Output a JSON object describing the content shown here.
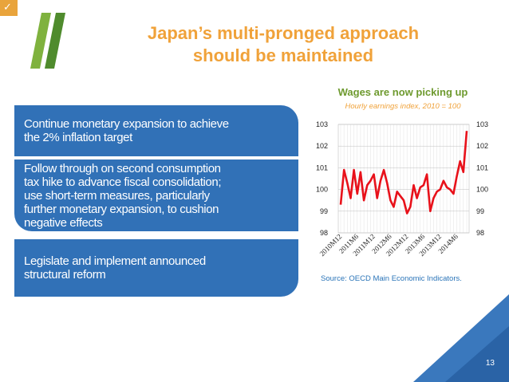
{
  "title_lines": [
    "Japan’s multi-pronged approach",
    "should be maintained"
  ],
  "boxes": [
    {
      "lines": [
        "Continue monetary expansion to achieve",
        "the 2% inflation target"
      ]
    },
    {
      "lines": [
        "Follow through on second consumption",
        "tax hike to advance fiscal consolidation;",
        "use short-term measures, particularly",
        "further monetary expansion, to cushion",
        "negative effects"
      ]
    },
    {
      "lines": [
        "Legislate and implement announced",
        "structural reform"
      ]
    }
  ],
  "source": "Source: OECD Main Economic Indicators.",
  "page_number": "13",
  "colors": {
    "title": "#f0a23a",
    "box": "#3171b7",
    "line": "#e8111a",
    "chart_title": "#6e9a2f"
  },
  "chart_data": {
    "type": "line",
    "title": "Wages are now picking up",
    "subtitle": "Hourly earnings index, 2010 = 100",
    "ylim": [
      98,
      103
    ],
    "y_ticks": [
      "98",
      "99",
      "100",
      "101",
      "102",
      "103"
    ],
    "x_ticks": [
      "2010M12",
      "2011M6",
      "2011M12",
      "2012M6",
      "2012M12",
      "2013M6",
      "2013M12",
      "2014M6"
    ],
    "grid": true,
    "series": [
      {
        "values": [
          99.3,
          100.9,
          100.3,
          99.6,
          100.9,
          99.8,
          100.8,
          99.5,
          100.2,
          100.4,
          100.7,
          99.6,
          100.4,
          100.9,
          100.3,
          99.5,
          99.2,
          99.9,
          99.7,
          99.5,
          98.9,
          99.2,
          100.2,
          99.6,
          100.1,
          100.2,
          100.7,
          99.0,
          99.6,
          99.9,
          100.0,
          100.4,
          100.1,
          100.0,
          99.8,
          100.6,
          101.3,
          100.8,
          102.7
        ]
      }
    ]
  }
}
